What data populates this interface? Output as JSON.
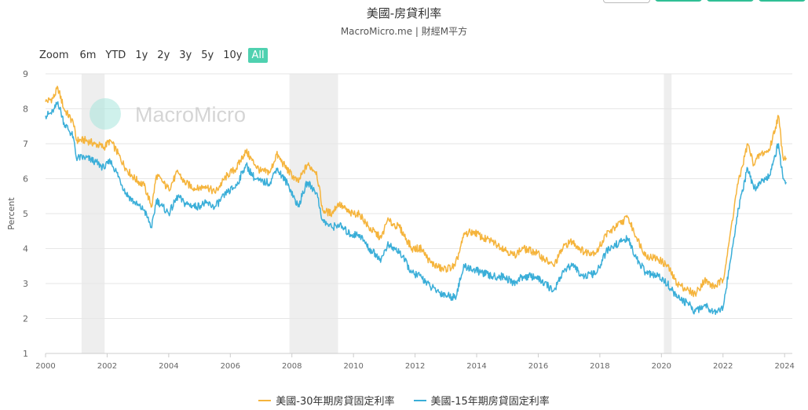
{
  "header": {
    "title": "美國-房貸利率",
    "subtitle": "MacroMicro.me | 財經M平方"
  },
  "watermark": {
    "text": "MacroMicro"
  },
  "range_selector": {
    "zoom_label": "Zoom",
    "buttons": [
      "6m",
      "YTD",
      "1y",
      "2y",
      "3y",
      "5y",
      "10y",
      "All"
    ],
    "active": "All"
  },
  "colors": {
    "series_30y": "#f5b43c",
    "series_15y": "#3aaed8",
    "recession_band": "#eeeeee",
    "grid": "#e6e6e6",
    "range_active": "#4fd1b0",
    "top_buttons": "#2fbf95"
  },
  "chart_data": {
    "type": "line",
    "title": "美國-房貸利率",
    "ylabel": "Percent",
    "xlim": [
      2000,
      2024.25
    ],
    "ylim": [
      1,
      9
    ],
    "yticks": [
      1,
      2,
      3,
      4,
      5,
      6,
      7,
      8,
      9
    ],
    "xticks": [
      2000,
      2002,
      2004,
      2006,
      2008,
      2010,
      2012,
      2014,
      2016,
      2018,
      2020,
      2022,
      2024
    ],
    "grid": true,
    "legend_position": "bottom-center",
    "recession_periods": [
      [
        2001.17,
        2001.92
      ],
      [
        2007.92,
        2009.5
      ],
      [
        2020.08,
        2020.33
      ]
    ],
    "series": [
      {
        "name": "美國-30年期房貸固定利率",
        "x": [
          2000.0,
          2000.25,
          2000.4,
          2000.6,
          2000.9,
          2001.0,
          2001.3,
          2001.6,
          2001.9,
          2002.1,
          2002.3,
          2002.6,
          2002.9,
          2003.2,
          2003.45,
          2003.6,
          2003.8,
          2004.0,
          2004.3,
          2004.5,
          2004.9,
          2005.2,
          2005.5,
          2005.9,
          2006.2,
          2006.5,
          2006.8,
          2007.0,
          2007.3,
          2007.5,
          2007.9,
          2008.2,
          2008.5,
          2008.8,
          2009.0,
          2009.3,
          2009.5,
          2009.9,
          2010.2,
          2010.5,
          2010.9,
          2011.1,
          2011.5,
          2011.9,
          2012.2,
          2012.5,
          2012.9,
          2013.3,
          2013.6,
          2013.9,
          2014.2,
          2014.5,
          2014.9,
          2015.2,
          2015.5,
          2015.9,
          2016.2,
          2016.5,
          2016.85,
          2017.1,
          2017.5,
          2017.9,
          2018.2,
          2018.5,
          2018.9,
          2019.2,
          2019.5,
          2019.9,
          2020.2,
          2020.5,
          2020.9,
          2021.1,
          2021.4,
          2021.7,
          2022.0,
          2022.2,
          2022.45,
          2022.8,
          2023.0,
          2023.2,
          2023.5,
          2023.8,
          2023.95,
          2024.05
        ],
        "values": [
          8.2,
          8.3,
          8.6,
          8.0,
          7.6,
          7.1,
          7.1,
          7.0,
          6.9,
          7.1,
          6.8,
          6.3,
          6.0,
          5.8,
          5.2,
          6.1,
          5.9,
          5.7,
          6.2,
          5.9,
          5.7,
          5.8,
          5.6,
          6.1,
          6.3,
          6.8,
          6.4,
          6.2,
          6.2,
          6.7,
          6.2,
          5.9,
          6.4,
          6.2,
          5.1,
          5.0,
          5.3,
          5.0,
          5.0,
          4.6,
          4.3,
          4.8,
          4.6,
          4.0,
          4.0,
          3.6,
          3.4,
          3.5,
          4.4,
          4.5,
          4.3,
          4.2,
          4.0,
          3.8,
          4.0,
          3.9,
          3.7,
          3.5,
          4.1,
          4.2,
          3.9,
          3.9,
          4.4,
          4.6,
          4.9,
          4.3,
          3.8,
          3.7,
          3.5,
          3.0,
          2.8,
          2.7,
          3.1,
          2.9,
          3.1,
          4.2,
          5.7,
          7.0,
          6.4,
          6.7,
          6.8,
          7.8,
          6.6,
          6.6
        ]
      },
      {
        "name": "美國-15年期房貸固定利率",
        "x": [
          2000.0,
          2000.25,
          2000.4,
          2000.6,
          2000.9,
          2001.0,
          2001.3,
          2001.6,
          2001.9,
          2002.1,
          2002.3,
          2002.6,
          2002.9,
          2003.2,
          2003.45,
          2003.6,
          2003.8,
          2004.0,
          2004.3,
          2004.5,
          2004.9,
          2005.2,
          2005.5,
          2005.9,
          2006.2,
          2006.5,
          2006.8,
          2007.0,
          2007.3,
          2007.5,
          2007.9,
          2008.2,
          2008.5,
          2008.8,
          2009.0,
          2009.3,
          2009.5,
          2009.9,
          2010.2,
          2010.5,
          2010.9,
          2011.1,
          2011.5,
          2011.9,
          2012.2,
          2012.5,
          2012.9,
          2013.3,
          2013.6,
          2013.9,
          2014.2,
          2014.5,
          2014.9,
          2015.2,
          2015.5,
          2015.9,
          2016.2,
          2016.5,
          2016.85,
          2017.1,
          2017.5,
          2017.9,
          2018.2,
          2018.5,
          2018.9,
          2019.2,
          2019.5,
          2019.9,
          2020.2,
          2020.5,
          2020.9,
          2021.1,
          2021.4,
          2021.7,
          2022.0,
          2022.2,
          2022.45,
          2022.8,
          2023.0,
          2023.2,
          2023.5,
          2023.8,
          2023.95,
          2024.05
        ],
        "values": [
          7.8,
          7.9,
          8.2,
          7.6,
          7.2,
          6.6,
          6.6,
          6.5,
          6.3,
          6.5,
          6.2,
          5.6,
          5.3,
          5.1,
          4.6,
          5.4,
          5.2,
          5.0,
          5.5,
          5.3,
          5.2,
          5.3,
          5.2,
          5.6,
          5.8,
          6.4,
          6.0,
          5.9,
          5.9,
          6.3,
          5.8,
          5.2,
          5.9,
          5.6,
          4.8,
          4.6,
          4.7,
          4.4,
          4.4,
          4.0,
          3.7,
          4.1,
          3.9,
          3.3,
          3.2,
          2.9,
          2.7,
          2.6,
          3.5,
          3.4,
          3.3,
          3.2,
          3.2,
          3.0,
          3.2,
          3.2,
          3.0,
          2.8,
          3.4,
          3.5,
          3.2,
          3.3,
          3.9,
          4.1,
          4.3,
          3.7,
          3.3,
          3.2,
          3.0,
          2.6,
          2.4,
          2.2,
          2.4,
          2.2,
          2.3,
          3.4,
          4.9,
          6.3,
          5.7,
          5.9,
          6.1,
          7.0,
          6.0,
          5.9
        ]
      }
    ]
  }
}
